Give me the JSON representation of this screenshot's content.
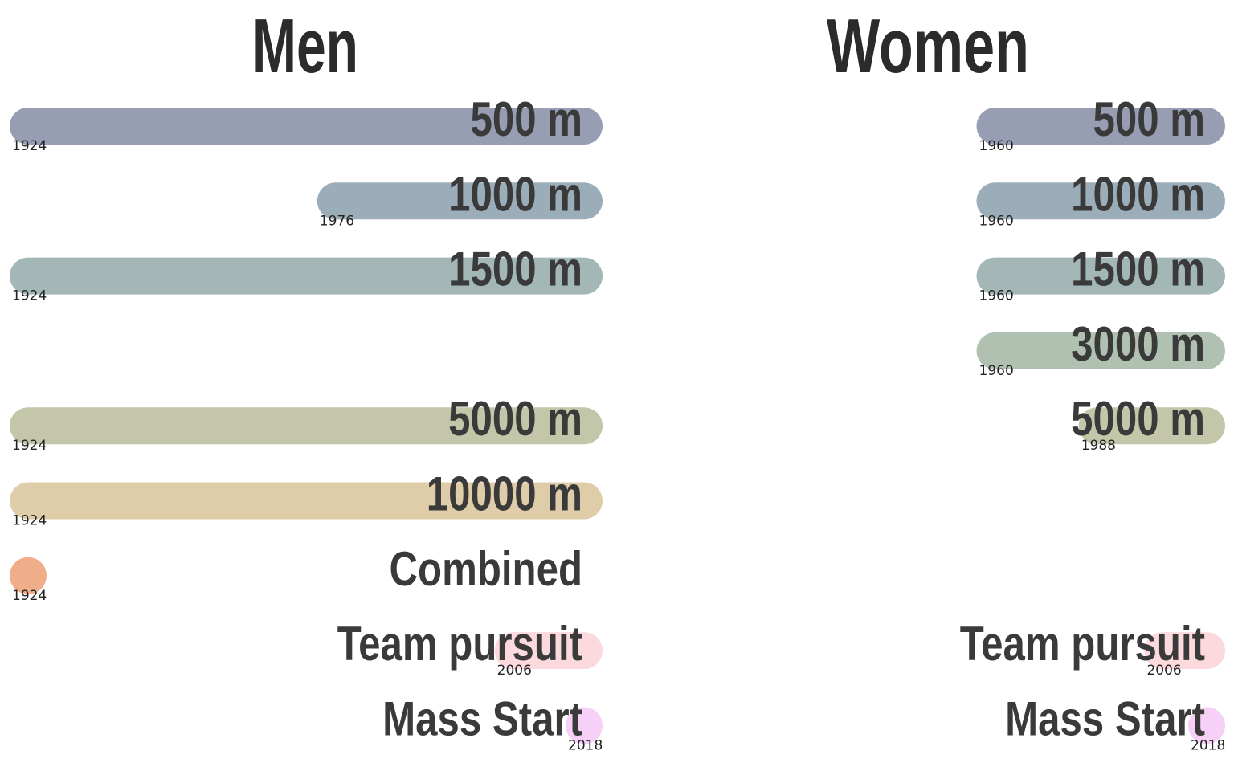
{
  "chart_data": {
    "type": "bar",
    "x_range": [
      1924,
      2018
    ],
    "panels": [
      {
        "title": "Men",
        "events": [
          {
            "name": "500 m",
            "start": 1924,
            "row": 0,
            "color": "#979db3"
          },
          {
            "name": "1000 m",
            "start": 1976,
            "row": 1,
            "color": "#9badb9"
          },
          {
            "name": "1500 m",
            "start": 1924,
            "row": 2,
            "color": "#a3b7b6"
          },
          {
            "name": "5000 m",
            "start": 1924,
            "row": 4,
            "color": "#c4c6a9"
          },
          {
            "name": "10000 m",
            "start": 1924,
            "row": 5,
            "color": "#dfcda9"
          },
          {
            "name": "Combined",
            "start": 1924,
            "end": 1924,
            "row": 6,
            "color": "#f0ad8a"
          },
          {
            "name": "Team pursuit",
            "start": 2006,
            "row": 7,
            "color": "#fcd9dd"
          },
          {
            "name": "Mass Start",
            "start": 2018,
            "row": 8,
            "color": "#f6d0f6"
          }
        ]
      },
      {
        "title": "Women",
        "events": [
          {
            "name": "500 m",
            "start": 1960,
            "row": 0,
            "color": "#979db3"
          },
          {
            "name": "1000 m",
            "start": 1960,
            "row": 1,
            "color": "#9badb9"
          },
          {
            "name": "1500 m",
            "start": 1960,
            "row": 2,
            "color": "#a3b7b6"
          },
          {
            "name": "3000 m",
            "start": 1960,
            "row": 3,
            "color": "#b1c1b1"
          },
          {
            "name": "5000 m",
            "start": 1988,
            "row": 4,
            "color": "#c4c6a9"
          },
          {
            "name": "Team pursuit",
            "start": 2006,
            "row": 7,
            "color": "#fcd9dd"
          },
          {
            "name": "Mass Start",
            "start": 2018,
            "row": 8,
            "color": "#f6d0f6"
          }
        ]
      }
    ]
  }
}
